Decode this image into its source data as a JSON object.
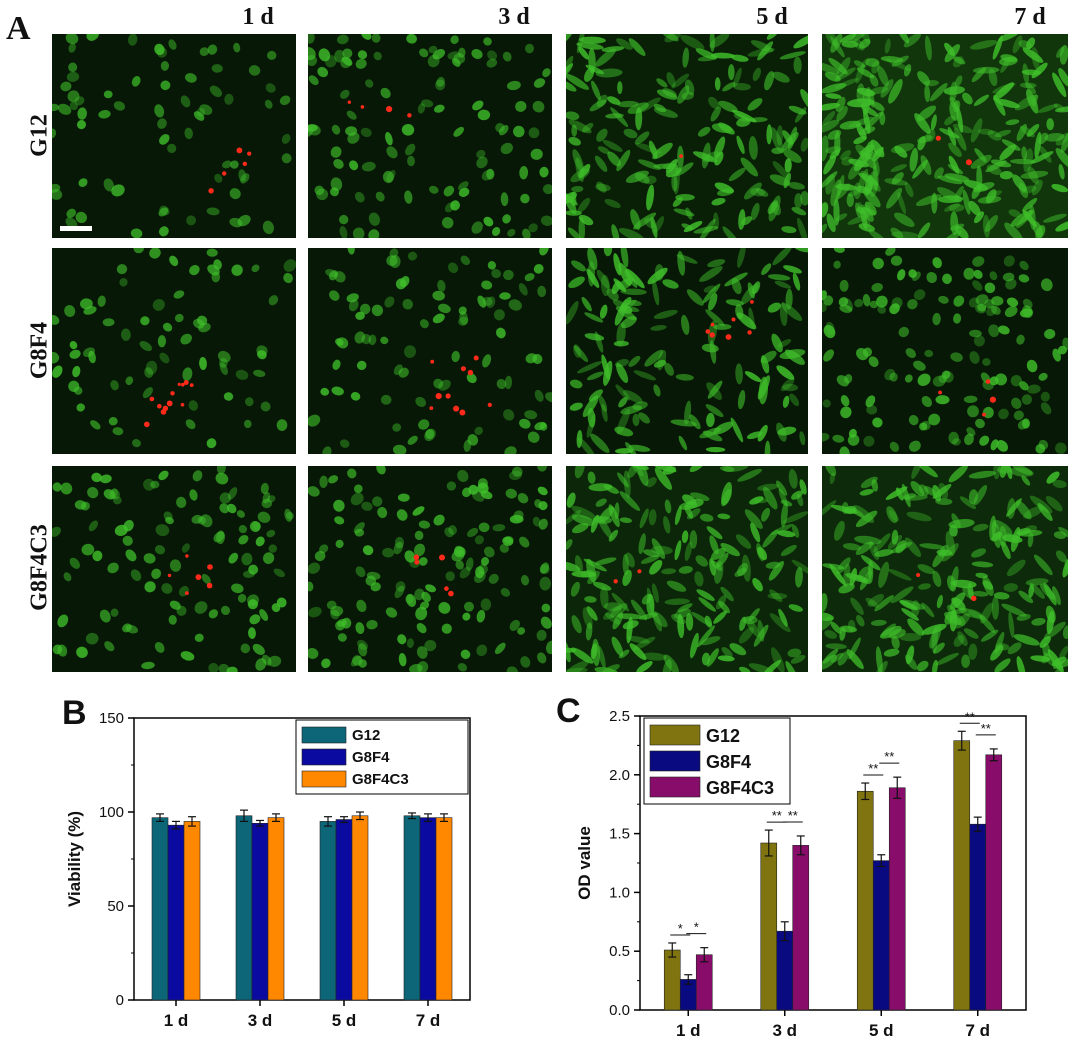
{
  "panel_a": {
    "letter": "A",
    "columns": [
      "1 d",
      "3 d",
      "5 d",
      "7 d"
    ],
    "rows": [
      "G12",
      "G8F4",
      "G8F4C3"
    ],
    "colors": {
      "live": "#3fbf2a",
      "dead": "#ff2a1a",
      "background": "#071806"
    },
    "tiles": [
      {
        "row": 0,
        "col": 0,
        "density": 70,
        "dead": 5,
        "shape": "round"
      },
      {
        "row": 0,
        "col": 1,
        "density": 110,
        "dead": 4,
        "shape": "round"
      },
      {
        "row": 0,
        "col": 2,
        "density": 180,
        "dead": 1,
        "shape": "spindle"
      },
      {
        "row": 0,
        "col": 3,
        "density": 260,
        "dead": 2,
        "shape": "spindle"
      },
      {
        "row": 1,
        "col": 0,
        "density": 70,
        "dead": 12,
        "shape": "round"
      },
      {
        "row": 1,
        "col": 1,
        "density": 90,
        "dead": 10,
        "shape": "round"
      },
      {
        "row": 1,
        "col": 2,
        "density": 150,
        "dead": 7,
        "shape": "spindle"
      },
      {
        "row": 1,
        "col": 3,
        "density": 140,
        "dead": 4,
        "shape": "round"
      },
      {
        "row": 2,
        "col": 0,
        "density": 110,
        "dead": 6,
        "shape": "round"
      },
      {
        "row": 2,
        "col": 1,
        "density": 140,
        "dead": 5,
        "shape": "round"
      },
      {
        "row": 2,
        "col": 2,
        "density": 200,
        "dead": 2,
        "shape": "spindle"
      },
      {
        "row": 2,
        "col": 3,
        "density": 220,
        "dead": 2,
        "shape": "spindle"
      }
    ]
  },
  "chart_data": [
    {
      "panel": "B",
      "type": "bar",
      "categories": [
        "1 d",
        "3 d",
        "5 d",
        "7 d"
      ],
      "series": [
        {
          "name": "G12",
          "color": "#0c6678",
          "values": [
            97,
            98,
            95,
            98
          ],
          "errors": [
            2,
            3,
            2.5,
            1.5
          ]
        },
        {
          "name": "G8F4",
          "color": "#0a0aa0",
          "values": [
            93,
            94,
            96,
            97
          ],
          "errors": [
            2,
            1.5,
            1.5,
            2
          ]
        },
        {
          "name": "G8F4C3",
          "color": "#ff8800",
          "values": [
            95,
            97,
            98,
            97
          ],
          "errors": [
            2.5,
            2,
            2,
            2
          ]
        }
      ],
      "ylabel": "Viability (%)",
      "ylim": [
        0,
        150
      ],
      "yticks": [
        0,
        50,
        100,
        150
      ],
      "legend": "top-right",
      "grid": false
    },
    {
      "panel": "C",
      "type": "bar",
      "categories": [
        "1 d",
        "3 d",
        "5 d",
        "7 d"
      ],
      "series": [
        {
          "name": "G12",
          "color": "#807410",
          "values": [
            0.51,
            1.42,
            1.86,
            2.29
          ],
          "errors": [
            0.06,
            0.11,
            0.07,
            0.08
          ]
        },
        {
          "name": "G8F4",
          "color": "#0a0a80",
          "values": [
            0.26,
            0.67,
            1.27,
            1.58
          ],
          "errors": [
            0.04,
            0.08,
            0.05,
            0.06
          ]
        },
        {
          "name": "G8F4C3",
          "color": "#880c6a",
          "values": [
            0.47,
            1.4,
            1.89,
            2.17
          ],
          "errors": [
            0.06,
            0.08,
            0.09,
            0.05
          ]
        }
      ],
      "ylabel": "OD value",
      "ylim": [
        0,
        2.5
      ],
      "yticks": [
        0.0,
        0.5,
        1.0,
        1.5,
        2.0,
        2.5
      ],
      "legend": "top-left",
      "grid": false,
      "significance": [
        {
          "category": 0,
          "from": 0,
          "to": 1,
          "label": "*"
        },
        {
          "category": 0,
          "from": 1,
          "to": 2,
          "label": "*"
        },
        {
          "category": 1,
          "from": 0,
          "to": 1,
          "label": "**"
        },
        {
          "category": 1,
          "from": 1,
          "to": 2,
          "label": "**"
        },
        {
          "category": 2,
          "from": 0,
          "to": 1,
          "label": "**"
        },
        {
          "category": 2,
          "from": 1,
          "to": 2,
          "label": "**"
        },
        {
          "category": 3,
          "from": 0,
          "to": 1,
          "label": "**"
        },
        {
          "category": 3,
          "from": 1,
          "to": 2,
          "label": "**"
        }
      ]
    }
  ]
}
